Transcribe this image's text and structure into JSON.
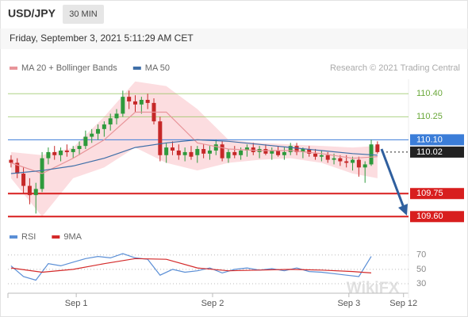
{
  "chart_data": [
    {
      "type": "candlestick",
      "title": "USD/JPY",
      "interval": "30 MIN",
      "subtitle": "Friday, September 3, 2021 5:11:29 AM CET",
      "source": "Research © 2021 Trading Central",
      "watermark": "WikiFX",
      "xlim": [
        -0.5,
        64
      ],
      "ylim": [
        109.55,
        110.52
      ],
      "ohlc": {
        "up_color": "#2e9a3c",
        "down_color": "#c62828",
        "x": [
          0,
          1,
          2,
          3,
          4,
          5,
          6,
          7,
          8,
          9,
          10,
          11,
          12,
          13,
          14,
          15,
          16,
          17,
          18,
          19,
          20,
          21,
          22,
          23,
          24,
          25,
          26,
          27,
          28,
          29,
          30,
          31,
          32,
          33,
          34,
          35,
          36,
          37,
          38,
          39,
          40,
          41,
          42,
          43,
          44,
          45,
          46,
          47,
          48,
          49,
          50,
          51,
          52,
          53,
          54,
          55,
          56,
          57,
          58,
          59
        ],
        "open": [
          109.97,
          109.95,
          109.88,
          109.8,
          109.74,
          109.78,
          109.98,
          110.02,
          110.0,
          110.03,
          110.02,
          110.04,
          110.06,
          110.12,
          110.14,
          110.17,
          110.2,
          110.24,
          110.27,
          110.38,
          110.35,
          110.33,
          110.36,
          110.34,
          110.22,
          110.0,
          110.05,
          110.03,
          110.0,
          110.02,
          110.0,
          110.04,
          110.01,
          110.03,
          110.07,
          109.98,
          110.02,
          110.0,
          110.03,
          110.05,
          110.02,
          110.04,
          110.01,
          110.03,
          110.0,
          110.02,
          110.06,
          110.02,
          110.04,
          110.01,
          109.99,
          110.0,
          109.97,
          109.98,
          109.96,
          109.95,
          109.97,
          109.92,
          109.94,
          110.07
        ],
        "high": [
          110.0,
          109.98,
          109.92,
          109.85,
          109.82,
          110.02,
          110.05,
          110.06,
          110.05,
          110.07,
          110.06,
          110.09,
          110.16,
          110.17,
          110.2,
          110.22,
          110.27,
          110.3,
          110.42,
          110.42,
          110.39,
          110.38,
          110.4,
          110.37,
          110.25,
          110.08,
          110.09,
          110.07,
          110.05,
          110.06,
          110.06,
          110.07,
          110.06,
          110.1,
          110.09,
          110.04,
          110.06,
          110.05,
          110.07,
          110.08,
          110.06,
          110.07,
          110.05,
          110.06,
          110.05,
          110.08,
          110.08,
          110.05,
          110.06,
          110.04,
          110.03,
          110.02,
          110.01,
          110.0,
          110.0,
          109.99,
          109.99,
          109.96,
          110.1,
          110.09
        ],
        "low": [
          109.92,
          109.85,
          109.75,
          109.68,
          109.62,
          109.76,
          109.94,
          109.97,
          109.96,
          109.99,
          109.98,
          110.0,
          110.04,
          110.08,
          110.1,
          110.12,
          110.16,
          110.2,
          110.25,
          110.3,
          110.28,
          110.27,
          110.3,
          110.2,
          109.96,
          109.95,
          110.0,
          109.97,
          109.96,
          109.97,
          109.95,
          109.98,
          109.97,
          110.0,
          109.96,
          109.95,
          109.98,
          109.97,
          109.99,
          110.0,
          109.98,
          110.0,
          109.97,
          109.99,
          109.97,
          110.0,
          110.0,
          109.98,
          109.99,
          109.97,
          109.96,
          109.95,
          109.94,
          109.93,
          109.92,
          109.9,
          109.86,
          109.82,
          109.93,
          110.01
        ],
        "close": [
          109.95,
          109.88,
          109.8,
          109.74,
          109.78,
          109.98,
          110.02,
          110.0,
          110.03,
          110.02,
          110.04,
          110.06,
          110.12,
          110.14,
          110.17,
          110.2,
          110.24,
          110.27,
          110.38,
          110.35,
          110.33,
          110.36,
          110.34,
          110.22,
          110.0,
          110.05,
          110.03,
          110.0,
          110.02,
          109.99,
          110.04,
          110.01,
          110.03,
          110.07,
          109.98,
          110.02,
          110.0,
          110.03,
          110.05,
          110.02,
          110.04,
          110.01,
          110.03,
          110.0,
          110.02,
          110.06,
          110.02,
          110.04,
          110.01,
          109.99,
          110.0,
          109.97,
          109.98,
          109.96,
          109.95,
          109.97,
          109.92,
          109.94,
          110.07,
          110.02
        ]
      },
      "series": [
        {
          "name": "MA 20 + Bollinger Bands",
          "color": "#e8959a",
          "band_color": "#fcdde0",
          "x": [
            0,
            5,
            10,
            15,
            20,
            25,
            30,
            35,
            40,
            45,
            50,
            55,
            59
          ],
          "values": [
            109.95,
            109.88,
            109.98,
            110.1,
            110.28,
            110.28,
            110.08,
            110.04,
            110.03,
            110.03,
            110.01,
            109.98,
            109.99
          ],
          "upper": [
            110.02,
            110.0,
            110.05,
            110.25,
            110.48,
            110.45,
            110.3,
            110.1,
            110.08,
            110.07,
            110.06,
            110.05,
            110.06
          ],
          "lower": [
            109.85,
            109.6,
            109.85,
            109.92,
            110.05,
            109.95,
            109.9,
            109.95,
            109.97,
            109.98,
            109.95,
            109.88,
            109.85
          ]
        },
        {
          "name": "MA 50",
          "color": "#3f6fa8",
          "x": [
            0,
            5,
            10,
            15,
            20,
            25,
            30,
            35,
            40,
            45,
            50,
            55,
            59
          ],
          "values": [
            109.88,
            109.9,
            109.93,
            109.98,
            110.05,
            110.08,
            110.1,
            110.09,
            110.07,
            110.05,
            110.03,
            110.01,
            110.0
          ]
        }
      ],
      "levels": [
        {
          "value": 110.4,
          "label": "110.40",
          "color": "#8cc152",
          "boxed": false,
          "style": "solid"
        },
        {
          "value": 110.25,
          "label": "110.25",
          "color": "#8cc152",
          "boxed": false,
          "style": "solid"
        },
        {
          "value": 110.1,
          "label": "110.10",
          "color": "#3b7dd8",
          "boxed": true,
          "style": "solid"
        },
        {
          "value": 110.02,
          "label": "110.02",
          "color": "#222222",
          "boxed": true,
          "style": "dotted"
        },
        {
          "value": 109.75,
          "label": "109.75",
          "color": "#d81e1e",
          "boxed": true,
          "style": "solid"
        },
        {
          "value": 109.6,
          "label": "109.60",
          "color": "#d81e1e",
          "boxed": true,
          "style": "solid"
        }
      ]
    },
    {
      "type": "line",
      "xlim": [
        -0.5,
        64
      ],
      "ylim": [
        19,
        83
      ],
      "yticks": [
        70,
        50,
        30
      ],
      "grid": true,
      "xticks": [
        {
          "value": 10.5,
          "label": "Sep 1"
        },
        {
          "value": 32.45,
          "label": "Sep 2"
        },
        {
          "value": 54.4,
          "label": "Sep 3"
        },
        {
          "value": 63.2,
          "label": "Sep 12"
        }
      ],
      "series": [
        {
          "name": "RSI",
          "color": "#5b8fd6",
          "x": [
            0,
            2,
            4,
            6,
            8,
            10,
            12,
            14,
            16,
            18,
            20,
            22,
            24,
            26,
            28,
            30,
            32,
            34,
            36,
            38,
            40,
            42,
            44,
            46,
            48,
            50,
            52,
            54,
            56,
            58
          ],
          "values": [
            55,
            40,
            35,
            58,
            55,
            60,
            65,
            68,
            66,
            72,
            66,
            64,
            42,
            50,
            46,
            48,
            52,
            45,
            50,
            52,
            49,
            51,
            48,
            52,
            47,
            46,
            44,
            42,
            40,
            68
          ]
        },
        {
          "name": "9MA",
          "color": "#d42a2a",
          "x": [
            0,
            5,
            10,
            15,
            20,
            25,
            30,
            35,
            40,
            45,
            50,
            55,
            58
          ],
          "values": [
            52,
            46,
            50,
            58,
            65,
            64,
            52,
            48,
            49,
            50,
            49,
            47,
            45
          ]
        }
      ]
    }
  ]
}
